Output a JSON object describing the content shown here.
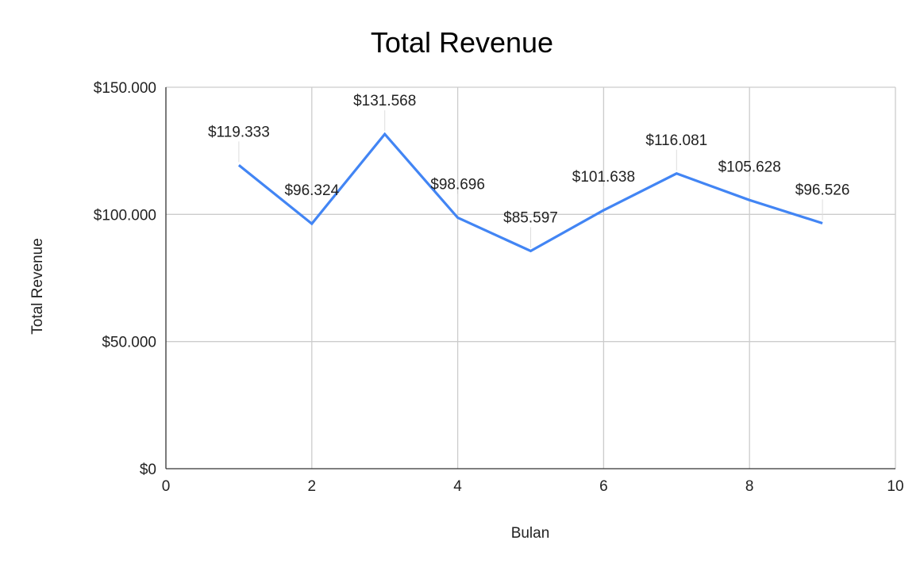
{
  "chart_data": {
    "type": "line",
    "title": "Total Revenue",
    "xlabel": "Bulan",
    "ylabel": "Total Revenue",
    "xlim": [
      0,
      10
    ],
    "ylim": [
      0,
      150000
    ],
    "x_ticks": [
      0,
      2,
      4,
      6,
      8,
      10
    ],
    "x_tick_labels": [
      "0",
      "2",
      "4",
      "6",
      "8",
      "10"
    ],
    "y_ticks": [
      0,
      50000,
      100000,
      150000
    ],
    "y_tick_labels": [
      "$0",
      "$50.000",
      "$100.000",
      "$150.000"
    ],
    "grid": true,
    "legend": "none",
    "series": [
      {
        "color": "#4285f4",
        "x": [
          1,
          2,
          3,
          4,
          5,
          6,
          7,
          8,
          9
        ],
        "values": [
          119333,
          96324,
          131568,
          98696,
          85597,
          101638,
          116081,
          105628,
          96526
        ],
        "data_labels": [
          "$119.333",
          "$96.324",
          "$131.568",
          "$98.696",
          "$85.597",
          "$101.638",
          "$116.081",
          "$105.628",
          "$96.526"
        ]
      }
    ]
  }
}
